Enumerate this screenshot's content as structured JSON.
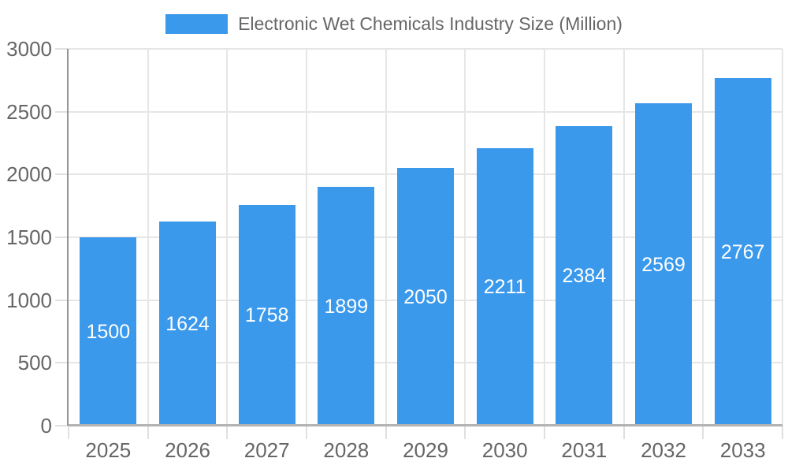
{
  "legend": {
    "label": "Electronic Wet Chemicals Industry Size (Million)"
  },
  "chart_data": {
    "type": "bar",
    "title": "Electronic Wet Chemicals Industry Size (Million)",
    "categories": [
      "2025",
      "2026",
      "2027",
      "2028",
      "2029",
      "2030",
      "2031",
      "2032",
      "2033"
    ],
    "values": [
      1500,
      1624,
      1758,
      1899,
      2050,
      2211,
      2384,
      2569,
      2767
    ],
    "xlabel": "",
    "ylabel": "",
    "ylim": [
      0,
      3000
    ],
    "yticks": [
      0,
      500,
      1000,
      1500,
      2000,
      2500,
      3000
    ],
    "grid": true,
    "legend_position": "top",
    "bar_color": "#3B99EC",
    "bar_label_color": "#ffffff",
    "axis_text_color": "#666666",
    "grid_color": "#e6e6e6",
    "axis_line_color": "#949494",
    "baseline_color": "#b3b3b3"
  }
}
